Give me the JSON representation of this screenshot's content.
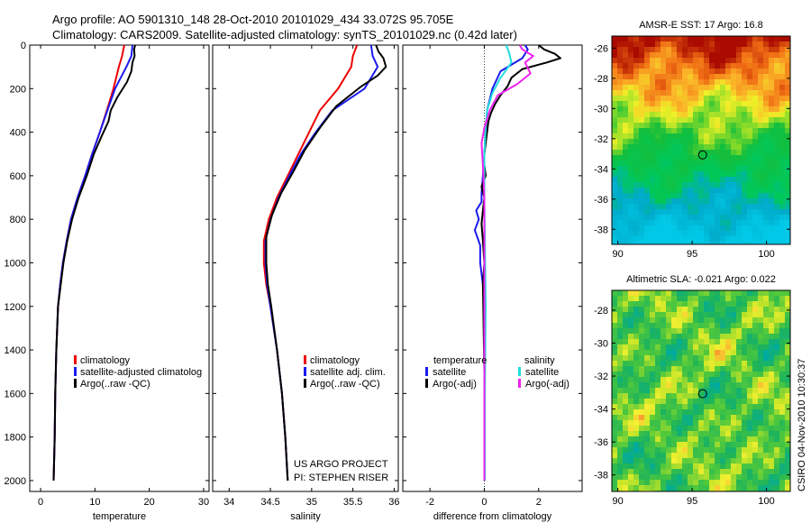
{
  "title": {
    "line1": "Argo profile: AO 5901310_148 28-Oct-2010 20101029_434 33.072S 95.705E",
    "line2": "Climatology: CARS2009. Satellite-adjusted climatology: synTS_20101029.nc (0.42d later)"
  },
  "colors": {
    "climatology": "#ee0000",
    "satellite": "#1a1aee",
    "argo": "#000000",
    "sal_satellite": "#22dddd",
    "sal_argo": "#ee22ee"
  },
  "chart_data": [
    {
      "type": "line",
      "id": "temperature",
      "xlabel": "temperature",
      "ylabel": "",
      "xlim": [
        -2,
        31
      ],
      "ylim": [
        2050,
        0
      ],
      "xticks": [
        0,
        10,
        20,
        30
      ],
      "yticks": [
        0,
        200,
        400,
        600,
        800,
        1000,
        1200,
        1400,
        1600,
        1800,
        2000
      ],
      "legend": [
        "climatology",
        "satellite-adjusted climatolog",
        "Argo(..raw -QC)"
      ],
      "series": [
        {
          "name": "climatology",
          "color": "#ee0000",
          "x": [
            15.4,
            15.0,
            14.4,
            13.4,
            12.2,
            10.9,
            9.5,
            8.2,
            6.8,
            5.6,
            4.8,
            4.1,
            3.6,
            3.2,
            2.9,
            2.7,
            2.6,
            2.5,
            2.4
          ],
          "y": [
            0,
            50,
            100,
            200,
            300,
            400,
            500,
            600,
            700,
            800,
            900,
            1000,
            1100,
            1200,
            1400,
            1600,
            1800,
            1900,
            2000
          ]
        },
        {
          "name": "satellite-adjusted climatolog",
          "color": "#1a1aee",
          "x": [
            16.9,
            16.7,
            15.8,
            13.7,
            12.3,
            10.9,
            9.5,
            8.2,
            6.8,
            5.6,
            4.8,
            4.1,
            3.6,
            3.2,
            2.9,
            2.7,
            2.6,
            2.5,
            2.4
          ],
          "y": [
            0,
            50,
            100,
            200,
            300,
            400,
            500,
            600,
            700,
            800,
            900,
            1000,
            1100,
            1200,
            1400,
            1600,
            1800,
            1900,
            2000
          ]
        },
        {
          "name": "Argo(..raw -QC)",
          "color": "#000000",
          "x": [
            17.4,
            17.2,
            17.3,
            16.9,
            16.7,
            15.9,
            14.1,
            12.9,
            12.5,
            11.2,
            9.8,
            8.5,
            7.0,
            5.8,
            4.9,
            4.2,
            3.7,
            3.2,
            2.9,
            2.7,
            2.6,
            2.5,
            2.4
          ],
          "y": [
            0,
            20,
            50,
            80,
            120,
            170,
            240,
            300,
            350,
            420,
            500,
            600,
            700,
            800,
            900,
            1000,
            1100,
            1200,
            1400,
            1600,
            1800,
            1900,
            2000
          ]
        }
      ]
    },
    {
      "type": "line",
      "id": "salinity",
      "xlabel": "salinity",
      "ylabel": "",
      "xlim": [
        33.8,
        36.05
      ],
      "ylim": [
        2050,
        0
      ],
      "xticks": [
        34,
        34.5,
        35,
        35.5,
        36
      ],
      "xtick_labels": [
        "34",
        "34.5",
        "35",
        "35.5",
        "36"
      ],
      "legend": [
        "climatology",
        "satellite adj. clim.",
        "Argo(..raw -QC)"
      ],
      "series": [
        {
          "name": "climatology",
          "color": "#ee0000",
          "x": [
            35.55,
            35.5,
            35.48,
            35.32,
            35.1,
            34.97,
            34.84,
            34.71,
            34.58,
            34.48,
            34.42,
            34.42,
            34.45,
            34.5,
            34.58,
            34.64,
            34.68,
            34.71
          ],
          "y": [
            0,
            50,
            100,
            200,
            300,
            400,
            500,
            600,
            700,
            800,
            900,
            1000,
            1100,
            1200,
            1400,
            1600,
            1800,
            2000
          ]
        },
        {
          "name": "satellite adj. clim.",
          "color": "#1a1aee",
          "x": [
            35.72,
            35.74,
            35.8,
            35.64,
            35.25,
            35.05,
            34.87,
            34.73,
            34.6,
            34.5,
            34.44,
            34.44,
            34.46,
            34.5,
            34.58,
            34.64,
            34.68,
            34.71
          ],
          "y": [
            0,
            50,
            100,
            200,
            300,
            400,
            500,
            600,
            700,
            800,
            900,
            1000,
            1100,
            1200,
            1400,
            1600,
            1800,
            2000
          ]
        },
        {
          "name": "Argo(..raw -QC)",
          "color": "#000000",
          "x": [
            35.78,
            35.81,
            35.87,
            35.9,
            35.8,
            35.6,
            35.3,
            35.1,
            34.92,
            34.78,
            34.63,
            34.52,
            34.45,
            34.45,
            34.47,
            34.51,
            34.58,
            34.64,
            34.68,
            34.71
          ],
          "y": [
            0,
            30,
            60,
            100,
            140,
            190,
            280,
            380,
            480,
            580,
            680,
            780,
            880,
            1000,
            1100,
            1200,
            1400,
            1600,
            1800,
            2000
          ]
        }
      ]
    },
    {
      "type": "line",
      "id": "difference",
      "xlabel": "difference from climatology",
      "ylabel": "",
      "xlim": [
        -3,
        3.6
      ],
      "ylim": [
        2050,
        0
      ],
      "xticks": [
        -2,
        0,
        2
      ],
      "legend_temperature_title": "temperature",
      "legend_salinity_title": "salinity",
      "legend": [
        "satellite",
        "Argo(-adj)",
        "satellite",
        "Argo(-adj)"
      ],
      "series": [
        {
          "name": "temperature satellite",
          "color": "#1a1aee",
          "x": [
            1.5,
            1.6,
            1.4,
            0.6,
            0.3,
            0.1,
            0.05,
            0.0,
            -0.05,
            -0.1,
            -0.1,
            -0.3,
            -0.2,
            -0.35,
            -0.15,
            -0.15,
            -0.05,
            0.0,
            0.0,
            0.0
          ],
          "y": [
            0,
            20,
            60,
            120,
            200,
            300,
            400,
            500,
            600,
            680,
            720,
            760,
            800,
            850,
            920,
            1000,
            1100,
            1200,
            1500,
            2000
          ]
        },
        {
          "name": "temperature Argo(-adj)",
          "color": "#000000",
          "x": [
            2.0,
            2.2,
            2.6,
            2.8,
            2.3,
            1.4,
            1.0,
            0.85,
            0.6,
            0.4,
            0.25,
            0.15,
            0.1,
            0.05,
            0.0,
            0.0,
            0.05,
            -0.1,
            0.0,
            -0.05,
            -0.1,
            -0.05,
            0.0,
            -0.05,
            0.0,
            0.0
          ],
          "y": [
            0,
            20,
            40,
            60,
            80,
            110,
            150,
            190,
            230,
            270,
            310,
            350,
            400,
            450,
            500,
            550,
            600,
            650,
            700,
            760,
            820,
            900,
            1000,
            1100,
            1500,
            2000
          ]
        },
        {
          "name": "salinity satellite",
          "color": "#22dddd",
          "x": [
            0.8,
            0.9,
            1.0,
            0.6,
            0.3,
            0.1,
            0.05,
            0.0,
            0.0,
            0.02,
            0.05,
            0.02,
            0.02
          ],
          "y": [
            0,
            30,
            80,
            150,
            220,
            300,
            380,
            500,
            700,
            900,
            1200,
            1600,
            2000
          ]
        },
        {
          "name": "salinity Argo(-adj)",
          "color": "#ee22ee",
          "x": [
            1.3,
            1.4,
            1.8,
            1.5,
            1.7,
            1.2,
            0.5,
            0.2,
            0.0,
            -0.1,
            -0.05,
            0.0,
            0.0,
            0.0
          ],
          "y": [
            0,
            20,
            50,
            80,
            130,
            180,
            230,
            300,
            380,
            450,
            550,
            700,
            1000,
            2000
          ]
        }
      ]
    },
    {
      "type": "heatmap",
      "id": "sst_map",
      "title": "AMSR-E SST: 17 Argo: 16.8",
      "xlim": [
        89.6,
        101.6
      ],
      "ylim": [
        -39.0,
        -25.2
      ],
      "xticks": [
        90,
        95,
        100
      ],
      "yticks": [
        -26,
        -28,
        -30,
        -32,
        -34,
        -36,
        -38
      ],
      "marker": {
        "lon": 95.705,
        "lat": -33.072
      }
    },
    {
      "type": "heatmap",
      "id": "sla_map",
      "title": "Altimetric SLA: -0.021 Argo: 0.022",
      "xlim": [
        89.6,
        101.6
      ],
      "ylim": [
        -39.0,
        -26.8
      ],
      "xticks": [
        90,
        95,
        100
      ],
      "yticks": [
        -28,
        -30,
        -32,
        -34,
        -36,
        -38
      ],
      "marker": {
        "lon": 95.705,
        "lat": -33.072
      }
    }
  ],
  "notes": {
    "project_line1": "US ARGO PROJECT",
    "project_line2": "PI: STEPHEN RISER",
    "timestamp": "CSIRO 04-Nov-2010 10:30:37"
  }
}
